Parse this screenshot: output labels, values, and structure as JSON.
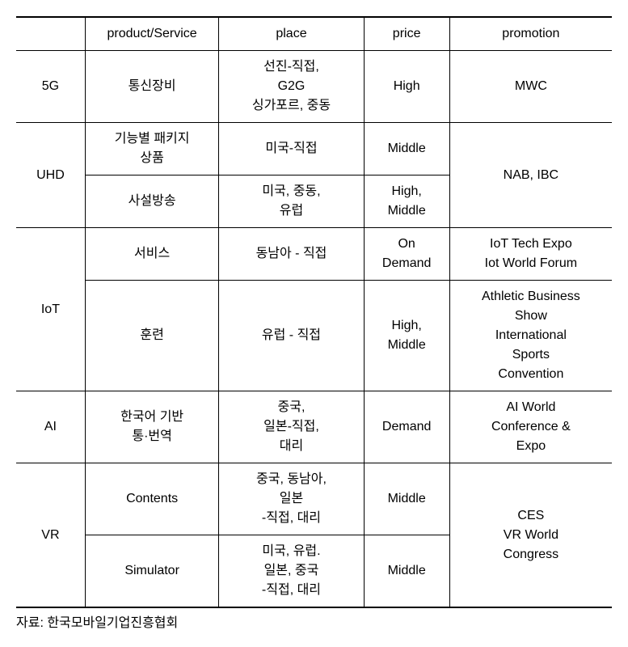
{
  "header": {
    "category": "",
    "product": "product/Service",
    "place": "place",
    "price": "price",
    "promotion": "promotion"
  },
  "rows": {
    "r5g": {
      "cat": "5G",
      "product": "통신장비",
      "place": "선진-직접,\nG2G\n싱가포르, 중동",
      "price": "High",
      "promotion": "MWC"
    },
    "uhd": {
      "cat": "UHD",
      "promotion": "NAB, IBC",
      "a": {
        "product": "기능별 패키지\n상품",
        "place": "미국-직접",
        "price": "Middle"
      },
      "b": {
        "product": "사설방송",
        "place": "미국, 중동,\n유럽",
        "price": "High,\nMiddle"
      }
    },
    "iot": {
      "cat": "IoT",
      "a": {
        "product": "서비스",
        "place": "동남아 - 직접",
        "price": "On\nDemand",
        "promotion": "IoT Tech Expo\nIot World Forum"
      },
      "b": {
        "product": "훈련",
        "place": "유럽 - 직접",
        "price": "High,\nMiddle",
        "promotion": "Athletic Business\nShow\nInternational\nSports\nConvention"
      }
    },
    "ai": {
      "cat": "AI",
      "product": "한국어 기반\n통·번역",
      "place": "중국,\n일본-직접,\n대리",
      "price": "Demand",
      "promotion": "AI World\nConference &\nExpo"
    },
    "vr": {
      "cat": "VR",
      "promotion": "CES\nVR World\nCongress",
      "a": {
        "product": "Contents",
        "place": "중국, 동남아,\n일본\n-직접, 대리",
        "price": "Middle"
      },
      "b": {
        "product": "Simulator",
        "place": "미국, 유럽.\n일본, 중국\n-직접, 대리",
        "price": "Middle"
      }
    }
  },
  "source": "자료: 한국모바일기업진흥협회"
}
